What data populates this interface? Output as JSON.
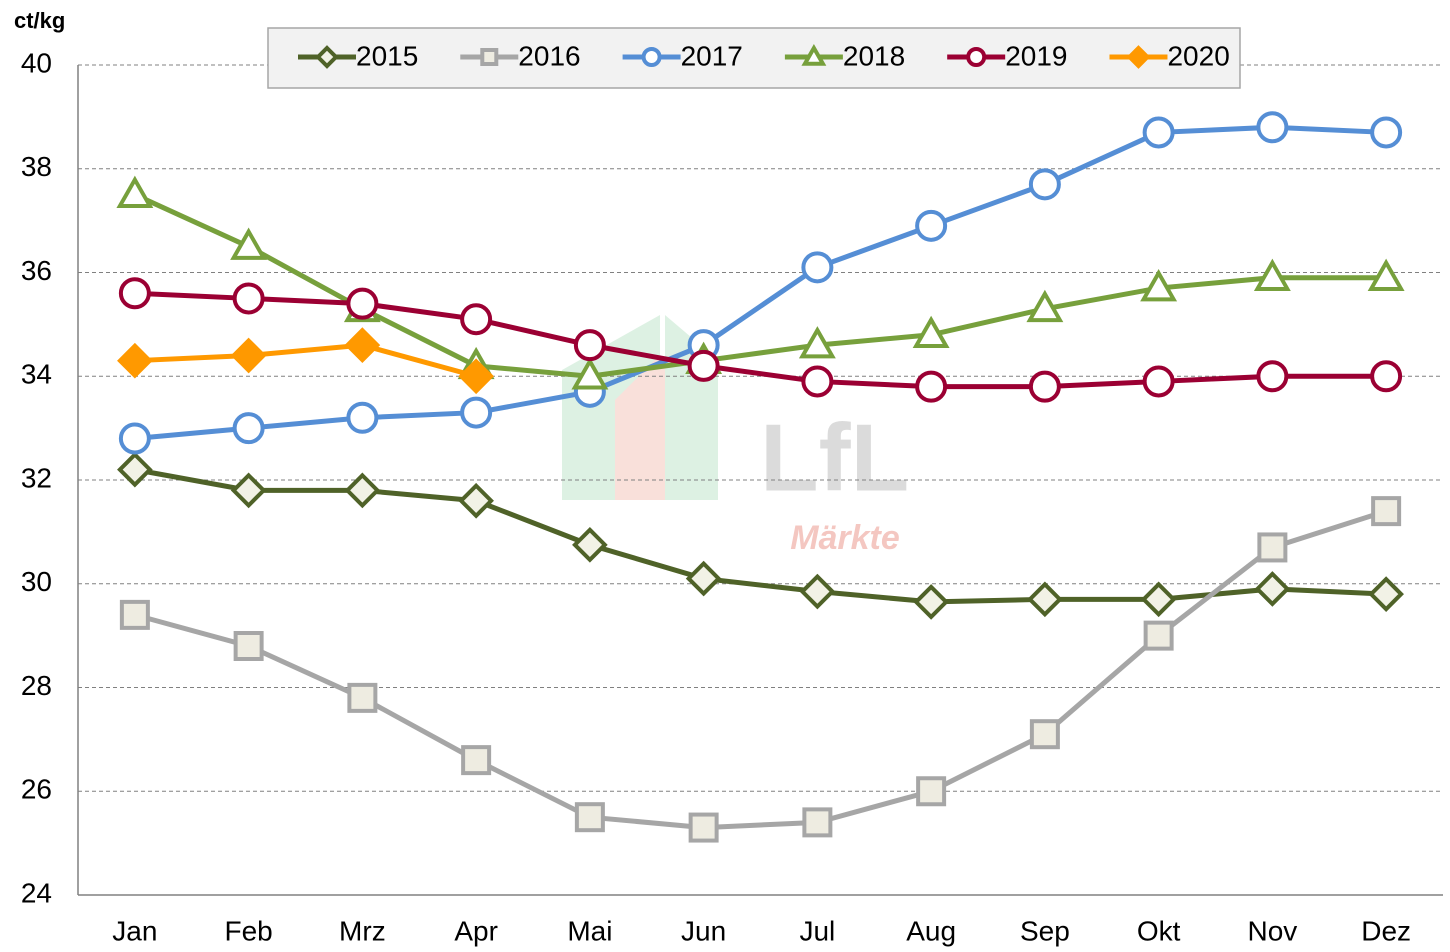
{
  "chart_data": {
    "type": "line",
    "y_label": "ct/kg",
    "watermark": {
      "logo": "LfL",
      "sub": "Märkte"
    },
    "categories": [
      "Jan",
      "Feb",
      "Mrz",
      "Apr",
      "Mai",
      "Jun",
      "Jul",
      "Aug",
      "Sep",
      "Okt",
      "Nov",
      "Dez"
    ],
    "series": [
      {
        "name": "2015",
        "color": "#4f6228",
        "marker": "diamond",
        "marker_fill": "#f2f2e6",
        "values": [
          32.2,
          31.8,
          31.8,
          31.6,
          30.75,
          30.1,
          29.85,
          29.65,
          29.7,
          29.7,
          29.9,
          29.8
        ]
      },
      {
        "name": "2016",
        "color": "#a6a6a6",
        "marker": "square",
        "marker_fill": "#eeece1",
        "values": [
          29.4,
          28.8,
          27.8,
          26.6,
          25.5,
          25.3,
          25.4,
          26.0,
          27.1,
          29.0,
          30.7,
          31.4
        ]
      },
      {
        "name": "2017",
        "color": "#558ed5",
        "marker": "circle",
        "marker_fill": "#ffffff",
        "values": [
          32.8,
          33.0,
          33.2,
          33.3,
          33.7,
          34.6,
          36.1,
          36.9,
          37.7,
          38.7,
          38.8,
          38.7
        ]
      },
      {
        "name": "2018",
        "color": "#77a03c",
        "marker": "triangle",
        "marker_fill": "#ffffff",
        "values": [
          37.5,
          36.5,
          35.3,
          34.2,
          34.0,
          34.3,
          34.6,
          34.8,
          35.3,
          35.7,
          35.9,
          35.9
        ]
      },
      {
        "name": "2019",
        "color": "#9b0033",
        "marker": "circle",
        "marker_fill": "#ffffff",
        "values": [
          35.6,
          35.5,
          35.4,
          35.1,
          34.6,
          34.2,
          33.9,
          33.8,
          33.8,
          33.9,
          34.0,
          34.0
        ]
      },
      {
        "name": "2020",
        "color": "#ff9900",
        "marker": "diamond",
        "marker_fill": "#ff9900",
        "values": [
          34.3,
          34.4,
          34.6,
          34.0,
          null,
          null,
          null,
          null,
          null,
          null,
          null,
          null
        ]
      }
    ],
    "ylim": [
      24,
      40
    ],
    "yticks": [
      24,
      26,
      28,
      30,
      32,
      34,
      36,
      38,
      40
    ],
    "grid": true,
    "legend": "top"
  }
}
